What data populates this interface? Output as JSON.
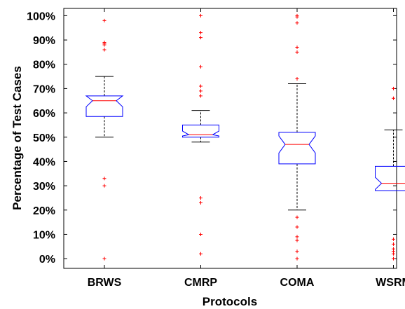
{
  "chart_data": {
    "type": "box",
    "title": "",
    "xlabel": "Protocols",
    "ylabel": "Percentage of Test Cases",
    "ylim": [
      -4,
      103
    ],
    "yticks": [
      0,
      10,
      20,
      30,
      40,
      50,
      60,
      70,
      80,
      90,
      100
    ],
    "ytick_labels": [
      "0%",
      "10%",
      "20%",
      "30%",
      "40%",
      "50%",
      "60%",
      "70%",
      "80%",
      "90%",
      "100%"
    ],
    "notched": true,
    "grid": false,
    "categories": [
      "BRWS",
      "CMRP",
      "COMA",
      "WSRM"
    ],
    "boxes": [
      {
        "name": "BRWS",
        "whisker_low": 50,
        "q1": 58.5,
        "median": 65,
        "q3": 67,
        "whisker_high": 75,
        "notch_low": 62.5,
        "notch_high": 67,
        "outliers": [
          98,
          89,
          88.5,
          88,
          86,
          33,
          30,
          0
        ]
      },
      {
        "name": "CMRP",
        "whisker_low": 48,
        "q1": 50,
        "median": 51,
        "q3": 55,
        "whisker_high": 61,
        "notch_low": 50.5,
        "notch_high": 52.5,
        "outliers": [
          100,
          93,
          91,
          79,
          71,
          69,
          67,
          25,
          23,
          10,
          2
        ]
      },
      {
        "name": "COMA",
        "whisker_low": 20,
        "q1": 39,
        "median": 47,
        "q3": 52,
        "whisker_high": 72,
        "notch_low": 43.5,
        "notch_high": 50.5,
        "outliers": [
          100,
          99.5,
          97,
          87,
          85,
          74,
          17,
          13,
          9,
          7.5,
          3,
          0
        ]
      },
      {
        "name": "WSRM",
        "whisker_low": 28,
        "q1": 28,
        "median": 31,
        "q3": 38,
        "whisker_high": 53,
        "notch_low": 28.5,
        "notch_high": 33.5,
        "outliers": [
          70,
          66,
          8,
          6,
          4,
          3,
          2,
          0
        ]
      }
    ],
    "colors": {
      "box": "#0000ff",
      "median": "#ff0000",
      "whisker": "#000000",
      "outlier": "#ff0000",
      "axes": "#000000"
    }
  }
}
